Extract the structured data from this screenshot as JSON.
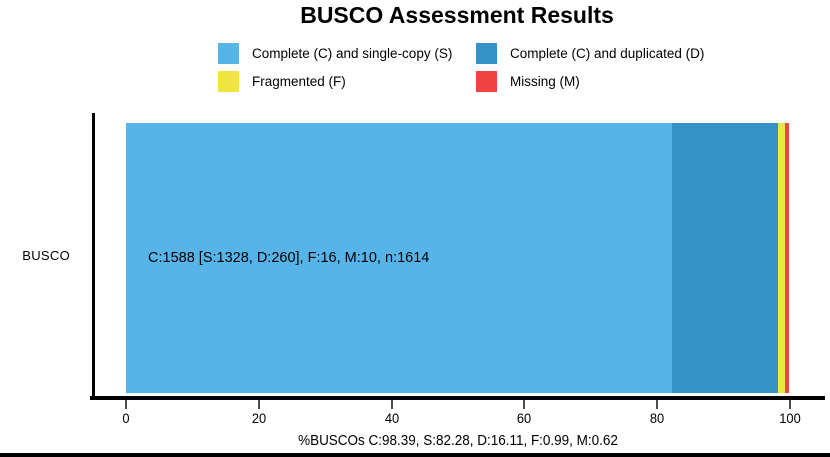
{
  "chart_data": {
    "type": "bar",
    "orientation": "horizontal",
    "title": "BUSCO Assessment Results",
    "categories": [
      "BUSCO"
    ],
    "series": [
      {
        "name": "Complete (C) and single-copy (S)",
        "values": [
          82.28
        ],
        "color": "#56B4E9"
      },
      {
        "name": "Complete (C) and duplicated (D)",
        "values": [
          16.11
        ],
        "color": "#3492C7"
      },
      {
        "name": "Fragmented (F)",
        "values": [
          0.99
        ],
        "color": "#F0E442"
      },
      {
        "name": "Missing (M)",
        "values": [
          0.62
        ],
        "color": "#F04442"
      }
    ],
    "bar_label": "C:1588 [S:1328, D:260], F:16, M:10, n:1614",
    "counts": {
      "C": 1588,
      "S": 1328,
      "D": 260,
      "F": 16,
      "M": 10,
      "n": 1614
    },
    "percentages": {
      "C": 98.39,
      "S": 82.28,
      "D": 16.11,
      "F": 0.99,
      "M": 0.62
    },
    "xlabel": "%BUSCOs C:98.39, S:82.28, D:16.11, F:0.99, M:0.62",
    "xlim": [
      0,
      100
    ],
    "xticks": [
      0,
      20,
      40,
      60,
      80,
      100
    ],
    "legend_position": "top",
    "grid": false,
    "axis_color": "#000000",
    "text_color": "#000000"
  }
}
